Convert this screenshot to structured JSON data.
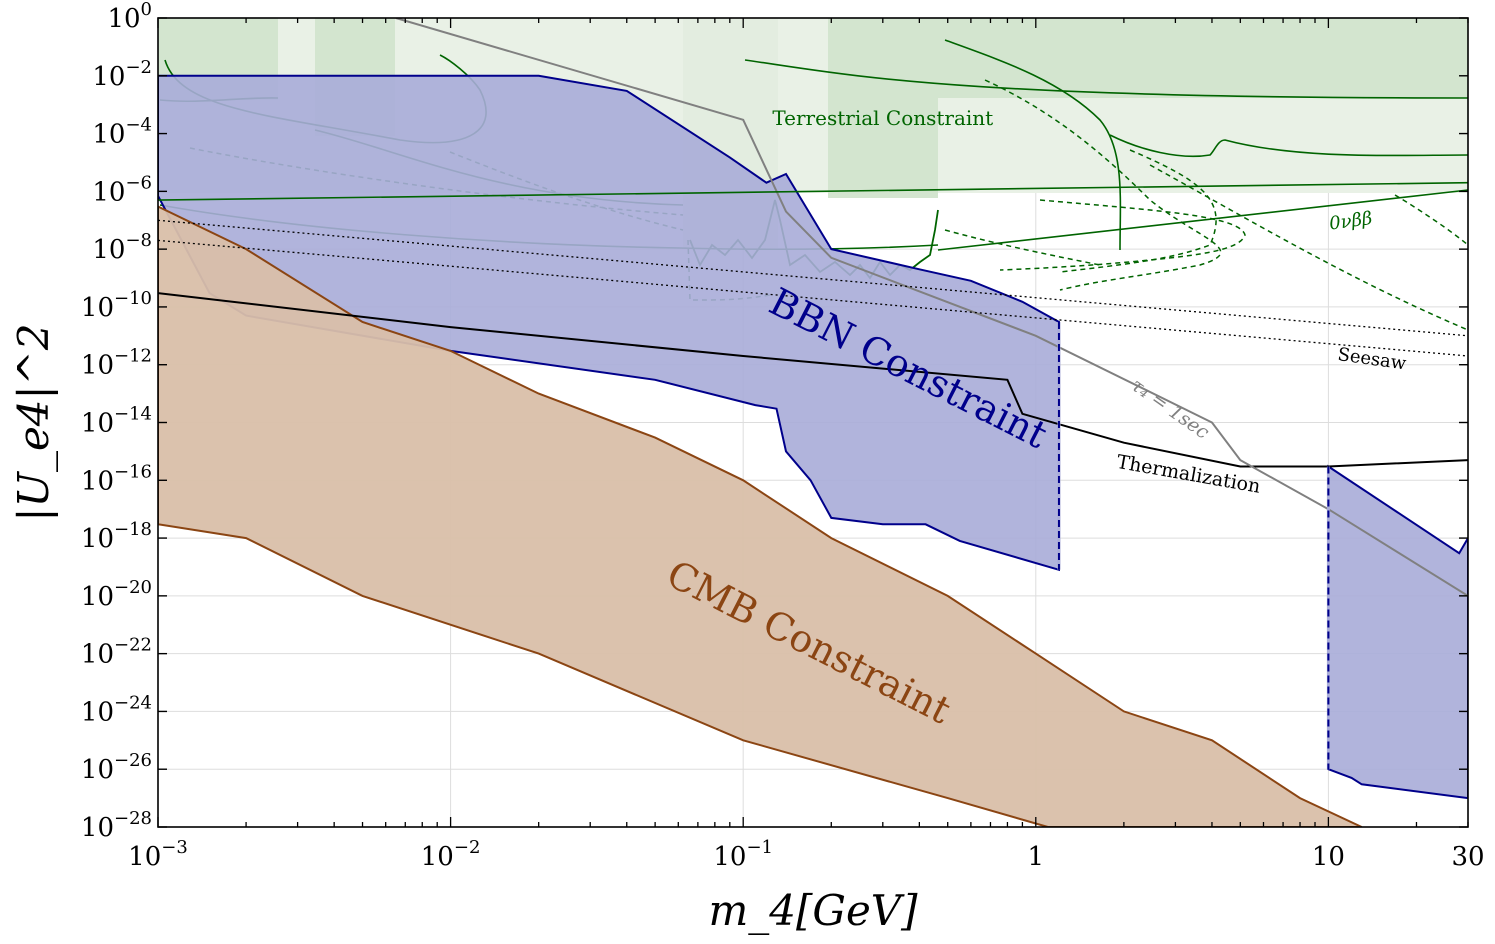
{
  "chart_data": {
    "type": "area",
    "title": "",
    "xlabel": "m_4[GeV]",
    "ylabel": "|U_e4|^2",
    "xscale": "log",
    "yscale": "log",
    "xlim": [
      0.001,
      30
    ],
    "ylim": [
      1e-28,
      1
    ],
    "grid": true,
    "x_ticks": [
      {
        "value": 0.001,
        "base": "10",
        "exp": "−3"
      },
      {
        "value": 0.01,
        "base": "10",
        "exp": "−2"
      },
      {
        "value": 0.1,
        "base": "10",
        "exp": "−1"
      },
      {
        "value": 1,
        "base": "1",
        "exp": ""
      },
      {
        "value": 10,
        "base": "10",
        "exp": ""
      },
      {
        "value": 30,
        "base": "30",
        "exp": ""
      }
    ],
    "y_ticks": [
      {
        "value": 1,
        "exp": "0"
      },
      {
        "value": 0.01,
        "exp": "−2"
      },
      {
        "value": 0.0001,
        "exp": "−4"
      },
      {
        "value": 1e-06,
        "exp": "−6"
      },
      {
        "value": 1e-08,
        "exp": "−8"
      },
      {
        "value": 1e-10,
        "exp": "−10"
      },
      {
        "value": 1e-12,
        "exp": "−12"
      },
      {
        "value": 1e-14,
        "exp": "−14"
      },
      {
        "value": 1e-16,
        "exp": "−16"
      },
      {
        "value": 1e-18,
        "exp": "−18"
      },
      {
        "value": 1e-20,
        "exp": "−20"
      },
      {
        "value": 1e-22,
        "exp": "−22"
      },
      {
        "value": 1e-24,
        "exp": "−24"
      },
      {
        "value": 1e-26,
        "exp": "−26"
      },
      {
        "value": 1e-28,
        "exp": "−28"
      }
    ],
    "colors": {
      "bbn_fill": "#a9acd8",
      "bbn_edge": "#00008b",
      "cmb_fill": "#d9bfa9",
      "cmb_edge": "#8b4513",
      "terr_fill": "#e7efe4",
      "terr_dark": "#c9dfc6",
      "terr_line": "#006400",
      "thermal": "#000000",
      "lifetime": "#808080",
      "seesaw": "#000000"
    },
    "regions": [
      {
        "name": "BBN Constraint",
        "points": [
          [
            0.001,
            0.01
          ],
          [
            0.02,
            0.01
          ],
          [
            0.04,
            0.003
          ],
          [
            0.09,
            1.5e-05
          ],
          [
            0.12,
            2e-06
          ],
          [
            0.14,
            4e-06
          ],
          [
            0.2,
            1e-08
          ],
          [
            0.4,
            2e-09
          ],
          [
            0.6,
            8e-10
          ],
          [
            0.9,
            1.5e-10
          ],
          [
            1.2,
            3e-11
          ],
          [
            1.2,
            8e-20
          ],
          [
            0.55,
            8e-19
          ],
          [
            0.42,
            3e-18
          ],
          [
            0.3,
            3e-18
          ],
          [
            0.2,
            5e-18
          ],
          [
            0.17,
            1e-16
          ],
          [
            0.14,
            1e-15
          ],
          [
            0.13,
            3e-14
          ],
          [
            0.11,
            4e-14
          ],
          [
            0.05,
            3e-13
          ],
          [
            0.01,
            3e-12
          ],
          [
            0.002,
            5e-11
          ],
          [
            0.0015,
            3e-10
          ],
          [
            0.001,
            7e-07
          ]
        ]
      },
      {
        "name": "BBN Constraint (high mass)",
        "points": [
          [
            10,
            3e-16
          ],
          [
            28,
            3e-19
          ],
          [
            30,
            1e-18
          ],
          [
            30,
            1e-27
          ],
          [
            13,
            3e-27
          ],
          [
            12,
            5e-27
          ],
          [
            10,
            1e-26
          ]
        ]
      },
      {
        "name": "CMB Constraint",
        "points": [
          [
            0.001,
            3e-07
          ],
          [
            0.002,
            1e-08
          ],
          [
            0.005,
            3e-11
          ],
          [
            0.01,
            3e-12
          ],
          [
            0.02,
            1e-13
          ],
          [
            0.05,
            3e-15
          ],
          [
            0.1,
            1e-16
          ],
          [
            0.2,
            1e-18
          ],
          [
            0.5,
            1e-20
          ],
          [
            1,
            1e-22
          ],
          [
            2,
            1e-24
          ],
          [
            4,
            1e-25
          ],
          [
            8,
            1e-27
          ],
          [
            13,
            1e-28
          ],
          [
            1.1,
            1e-28
          ],
          [
            0.5,
            1e-27
          ],
          [
            0.1,
            1e-25
          ],
          [
            0.02,
            1e-22
          ],
          [
            0.005,
            1e-20
          ],
          [
            0.002,
            1e-18
          ],
          [
            0.001,
            3e-18
          ]
        ]
      }
    ],
    "lines": [
      {
        "name": "Thermalization",
        "points": [
          [
            0.001,
            3e-10
          ],
          [
            0.01,
            2e-11
          ],
          [
            0.1,
            2e-12
          ],
          [
            0.8,
            3e-13
          ],
          [
            0.9,
            2e-14
          ],
          [
            2,
            2e-15
          ],
          [
            5,
            3e-16
          ],
          [
            10,
            3e-16
          ],
          [
            30,
            5e-16
          ]
        ]
      },
      {
        "name": "tau_4 = 1 sec",
        "points": [
          [
            0.0065,
            1
          ],
          [
            0.1,
            0.0003
          ],
          [
            0.14,
            2e-07
          ],
          [
            0.2,
            5e-09
          ],
          [
            1,
            1e-11
          ],
          [
            4,
            1e-14
          ],
          [
            5,
            5e-16
          ],
          [
            10,
            1e-17
          ],
          [
            30,
            1e-20
          ]
        ]
      },
      {
        "name": "Seesaw (upper)",
        "points": [
          [
            0.001,
            1e-07
          ],
          [
            30,
            1e-11
          ]
        ]
      },
      {
        "name": "Seesaw (lower)",
        "points": [
          [
            0.001,
            2e-08
          ],
          [
            30,
            2e-12
          ]
        ]
      },
      {
        "name": "0vbb",
        "points": [
          [
            0.001,
            5e-07
          ],
          [
            30,
            2e-06
          ]
        ]
      }
    ],
    "annotations": [
      {
        "text": "Terrestrial Constraint",
        "x": 0.3,
        "y": 0.0002,
        "angle": 0
      },
      {
        "text": "BBN Constraint",
        "x": 0.35,
        "y": 3e-13,
        "angle": 27
      },
      {
        "text": "CMB Constraint",
        "x": 0.16,
        "y": 1e-22,
        "angle": 27
      },
      {
        "text": "Thermalization",
        "x": 3.3,
        "y": 1e-16,
        "angle": 10
      },
      {
        "text": "Seesaw",
        "x": 14,
        "y": 1e-12,
        "angle": 8
      },
      {
        "text": "τ₄ = 1sec",
        "x": 2.8,
        "y": 2e-14,
        "angle": 35
      },
      {
        "text": "0νββ",
        "x": 12,
        "y": 6e-08,
        "angle": -8
      }
    ]
  }
}
